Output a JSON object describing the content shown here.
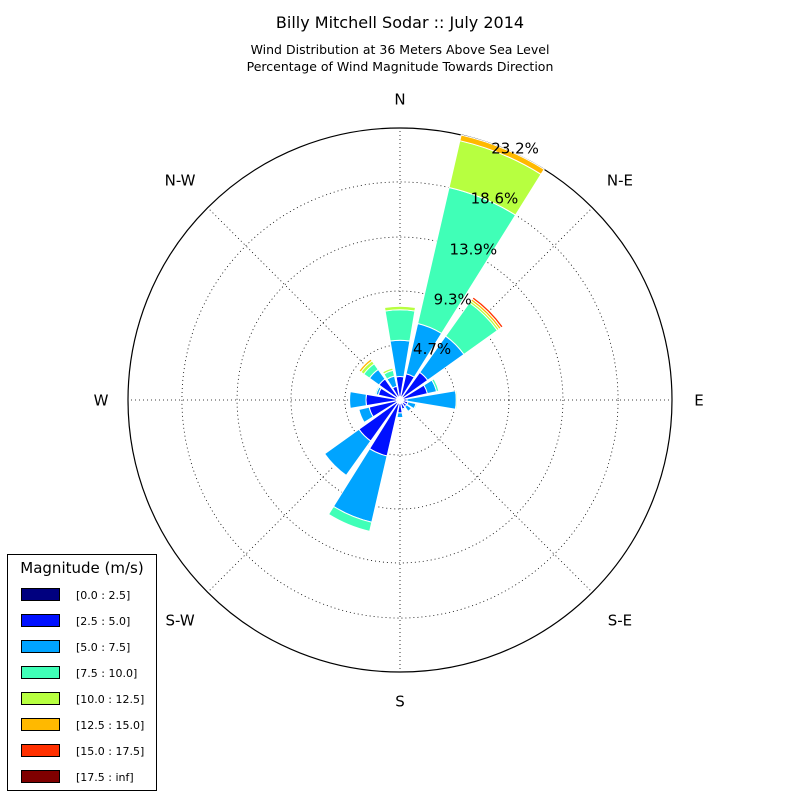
{
  "title": "Billy Mitchell Sodar :: July 2014",
  "subtitle_line1": "Wind Distribution at 36 Meters Above Sea Level",
  "subtitle_line2": "Percentage of Wind Magnitude Towards Direction",
  "chart_data": {
    "type": "windrose",
    "directions": [
      "N",
      "N-E",
      "E",
      "S-E",
      "S",
      "S-W",
      "W",
      "N-W"
    ],
    "radial_tick_labels": [
      "4.7%",
      "9.3%",
      "13.9%",
      "18.6%",
      "23.2%"
    ],
    "radial_ticks": [
      4.7,
      9.3,
      13.9,
      18.6,
      23.2
    ],
    "r_max": 23.2,
    "grid": true,
    "legend_position": "lower-left",
    "legend_title": "Magnitude (m/s)",
    "bins": [
      {
        "label": "[0.0 : 2.5]",
        "color": "#00007f"
      },
      {
        "label": "[2.5 : 5.0]",
        "color": "#0010ff"
      },
      {
        "label": "[5.0 : 7.5]",
        "color": "#00a4ff"
      },
      {
        "label": "[7.5 : 10.0]",
        "color": "#40ffb7"
      },
      {
        "label": "[10.0 : 12.5]",
        "color": "#b7ff40"
      },
      {
        "label": "[12.5 : 15.0]",
        "color": "#ffb900"
      },
      {
        "label": "[15.0 : 17.5]",
        "color": "#ff3000"
      },
      {
        "label": "[17.5 : inf]",
        "color": "#7f0000"
      }
    ],
    "sector_directions_deg": [
      0,
      22.5,
      45,
      67.5,
      90,
      112.5,
      135,
      157.5,
      180,
      202.5,
      225,
      247.5,
      270,
      292.5,
      315,
      337.5
    ],
    "cumulative_percent": [
      [
        0.3,
        2.0,
        5.1,
        7.7,
        8.0,
        8.0,
        8.0,
        8.0
      ],
      [
        0.3,
        2.3,
        6.7,
        18.6,
        22.7,
        23.2,
        23.2,
        23.2
      ],
      [
        0.3,
        2.9,
        6.7,
        10.2,
        10.4,
        10.6,
        10.8,
        10.8
      ],
      [
        0.3,
        2.4,
        3.2,
        3.4,
        3.4,
        3.4,
        3.4,
        3.4
      ],
      [
        0.3,
        0.6,
        4.8,
        4.8,
        4.9,
        4.9,
        4.9,
        4.9
      ],
      [
        0.3,
        0.7,
        1.4,
        1.5,
        1.5,
        1.5,
        1.5,
        1.5
      ],
      [
        0.3,
        0.7,
        1.2,
        1.2,
        1.2,
        1.2,
        1.2,
        1.2
      ],
      [
        0.3,
        0.8,
        0.9,
        0.9,
        0.9,
        0.9,
        0.9,
        0.9
      ],
      [
        0.3,
        1.1,
        1.5,
        1.5,
        1.5,
        1.5,
        1.5,
        1.5
      ],
      [
        0.3,
        4.9,
        10.7,
        11.5,
        11.5,
        11.5,
        11.5,
        11.5
      ],
      [
        0.3,
        4.3,
        7.9,
        7.9,
        7.9,
        7.9,
        7.9,
        7.9
      ],
      [
        0.3,
        2.7,
        3.6,
        3.6,
        3.6,
        3.6,
        3.6,
        3.6
      ],
      [
        0.3,
        2.9,
        4.3,
        4.3,
        4.3,
        4.3,
        4.3,
        4.3
      ],
      [
        0.3,
        1.9,
        2.1,
        2.2,
        2.2,
        2.2,
        2.2,
        2.2
      ],
      [
        0.3,
        2.2,
        3.2,
        3.8,
        4.1,
        4.3,
        4.3,
        4.3
      ],
      [
        0.3,
        1.2,
        2.1,
        2.6,
        2.8,
        2.8,
        2.8,
        2.8
      ]
    ]
  }
}
